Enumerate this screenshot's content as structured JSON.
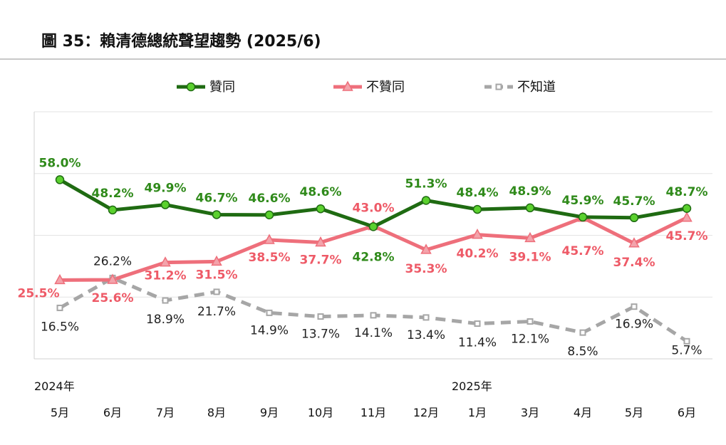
{
  "title": "圖 35：賴清德總統聲望趨勢  (2025/6)",
  "chart_data": {
    "type": "line",
    "categories": [
      "5月",
      "6月",
      "7月",
      "8月",
      "9月",
      "10月",
      "11月",
      "12月",
      "1月",
      "3月",
      "4月",
      "5月",
      "6月"
    ],
    "year_labels": [
      {
        "index": 0,
        "label": "2024年"
      },
      {
        "index": 8,
        "label": "2025年"
      }
    ],
    "ylim": [
      0,
      80
    ],
    "grid": true,
    "legend_position": "top-center",
    "series": [
      {
        "name": "贊同",
        "color": "#1f6b12",
        "marker_color": "#5bd12e",
        "marker": "circle",
        "line_style": "solid",
        "values": [
          58.0,
          48.2,
          49.9,
          46.7,
          46.6,
          48.6,
          42.8,
          51.3,
          48.4,
          48.9,
          45.9,
          45.7,
          48.7
        ],
        "labels": [
          "58.0%",
          "48.2%",
          "49.9%",
          "46.7%",
          "46.6%",
          "48.6%",
          "42.8%",
          "51.3%",
          "48.4%",
          "48.9%",
          "45.9%",
          "45.7%",
          "48.7%"
        ]
      },
      {
        "name": "不贊同",
        "color": "#ee6f7b",
        "marker_color": "#f3a3ab",
        "marker": "triangle",
        "line_style": "solid",
        "values": [
          25.5,
          25.6,
          31.2,
          31.5,
          38.5,
          37.7,
          43.0,
          35.3,
          40.2,
          39.1,
          45.7,
          37.4,
          45.7
        ],
        "labels": [
          "25.5%",
          "25.6%",
          "31.2%",
          "31.5%",
          "38.5%",
          "37.7%",
          "43.0%",
          "35.3%",
          "40.2%",
          "39.1%",
          "45.7%",
          "37.4%",
          "45.7%"
        ]
      },
      {
        "name": "不知道",
        "color": "#a6a6a6",
        "marker_color": "#8c8c8c",
        "marker": "square",
        "line_style": "dashed",
        "values": [
          16.5,
          26.2,
          18.9,
          21.7,
          14.9,
          13.7,
          14.1,
          13.4,
          11.4,
          12.1,
          8.5,
          16.9,
          5.7
        ],
        "labels": [
          "16.5%",
          "26.2%",
          "18.9%",
          "21.7%",
          "14.9%",
          "13.7%",
          "14.1%",
          "13.4%",
          "11.4%",
          "12.1%",
          "8.5%",
          "16.9%",
          "5.7%"
        ]
      }
    ]
  }
}
